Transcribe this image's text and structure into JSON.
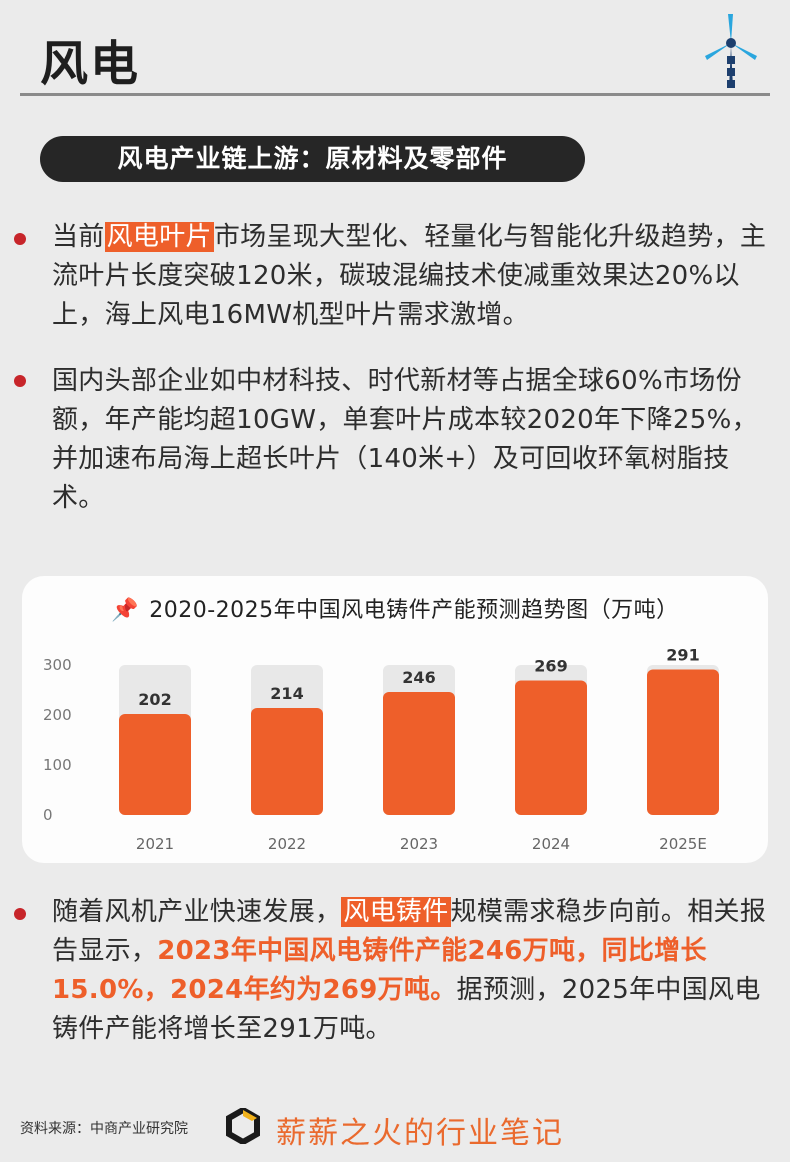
{
  "header": {
    "title": "风电"
  },
  "section": {
    "title": "风电产业链上游：原材料及零部件"
  },
  "paragraphs": {
    "p1": {
      "before": "当前",
      "highlight": "风电叶片",
      "after": "市场呈现大型化、轻量化与智能化升级趋势，主流叶片长度突破120米，碳玻混编技术使减重效果达20%以上，海上风电16MW机型叶片需求激增。"
    },
    "p2": {
      "text": "国内头部企业如中材科技、时代新材等占据全球60%市场份额，年产能均超10GW，单套叶片成本较2020年下降25%，并加速布局海上超长叶片（140米+）及可回收环氧树脂技术。"
    },
    "p3": {
      "before": "随着风机产业快速发展，",
      "highlight": "风电铸件",
      "middle": "规模需求稳步向前。相关报告显示，",
      "emphasis": "2023年中国风电铸件产能246万吨，同比增长15.0%，2024年约为269万吨。",
      "after": "据预测，2025年中国风电铸件产能将增长至291万吨。"
    }
  },
  "chart_data": {
    "type": "bar",
    "title": "2020-2025年中国风电铸件产能预测趋势图（万吨）",
    "categories": [
      "2021",
      "2022",
      "2023",
      "2024",
      "2025E"
    ],
    "values": [
      202,
      214,
      246,
      269,
      291
    ],
    "yticks": [
      "300",
      "200",
      "100",
      "0"
    ],
    "ylim": [
      0,
      300
    ],
    "grid": false,
    "legend": "none",
    "bar_color": "#ee5f2a",
    "bar_bg_color": "#e8e8e8"
  },
  "footer": {
    "source": "资料来源：中商产业研究院",
    "brand": "薪薪之火的行业笔记"
  },
  "colors": {
    "accent": "#ee5f2a",
    "bullet": "#c7252a",
    "pill": "#262626"
  },
  "icons": {
    "turbine": "wind-turbine-icon",
    "pin": "pushpin-icon",
    "logo": "hexagon-logo-icon"
  }
}
